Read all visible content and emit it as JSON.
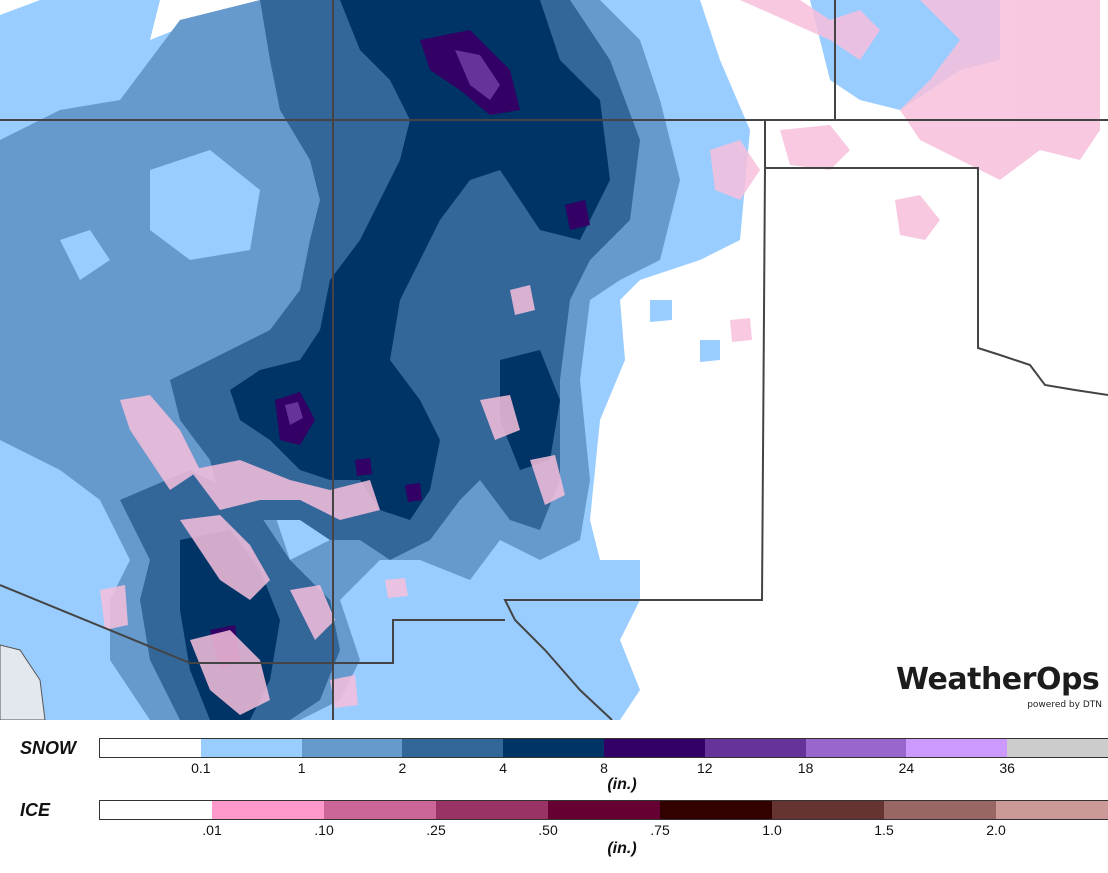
{
  "map": {
    "colors": {
      "snow_0_1": "#99ccff",
      "snow_1": "#6699cc",
      "snow_2": "#336699",
      "snow_4": "#003366",
      "snow_8": "#330066",
      "snow_12": "#663399",
      "ice_01": "#f7bfdc",
      "state_line": "#444444"
    }
  },
  "brand": {
    "logo_text": "WeatherOps",
    "logo_sub": "powered by DTN"
  },
  "legend": {
    "snow": {
      "title": "SNOW",
      "unit": "(in.)",
      "colors": [
        "#ffffff",
        "#99ccff",
        "#6699cc",
        "#336699",
        "#003366",
        "#330066",
        "#663399",
        "#9966cc",
        "#cc99ff",
        "#cccccc"
      ],
      "ticks": [
        "0.1",
        "1",
        "2",
        "4",
        "8",
        "12",
        "18",
        "24",
        "36"
      ]
    },
    "ice": {
      "title": "ICE",
      "unit": "(in.)",
      "colors": [
        "#ffffff",
        "#ff99cc",
        "#cc6699",
        "#993366",
        "#660033",
        "#330000",
        "#663333",
        "#996666",
        "#cc9999"
      ],
      "ticks": [
        ".01",
        ".10",
        ".25",
        ".50",
        ".75",
        "1.0",
        "1.5",
        "2.0"
      ]
    }
  }
}
